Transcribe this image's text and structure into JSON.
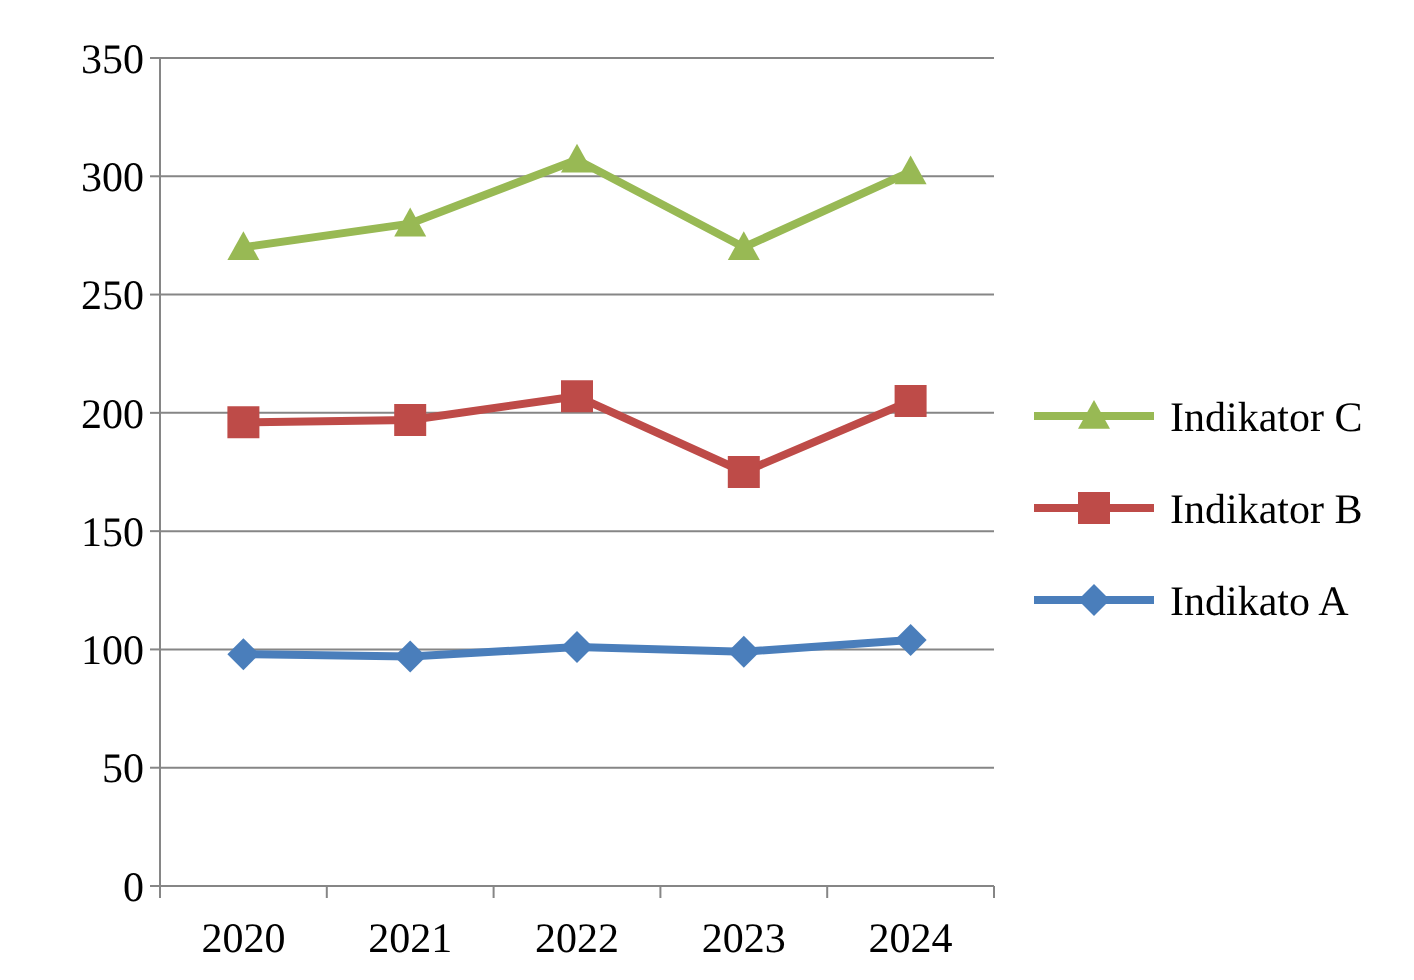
{
  "chart_data": {
    "type": "line",
    "categories": [
      "2020",
      "2021",
      "2022",
      "2023",
      "2024"
    ],
    "series": [
      {
        "name": "Indikato A",
        "color": "#4a7ebb",
        "marker": "diamond",
        "values": [
          98,
          97,
          101,
          99,
          104
        ]
      },
      {
        "name": "Indikator B",
        "color": "#be4b48",
        "marker": "square",
        "values": [
          196,
          197,
          207,
          175,
          205
        ]
      },
      {
        "name": "Indikator C",
        "color": "#98b954",
        "marker": "triangle",
        "values": [
          270,
          280,
          307,
          270,
          302
        ]
      }
    ],
    "ylim": [
      0,
      350
    ],
    "yticks": [
      0,
      50,
      100,
      150,
      200,
      250,
      300,
      350
    ],
    "grid": "y",
    "legend": "right"
  }
}
